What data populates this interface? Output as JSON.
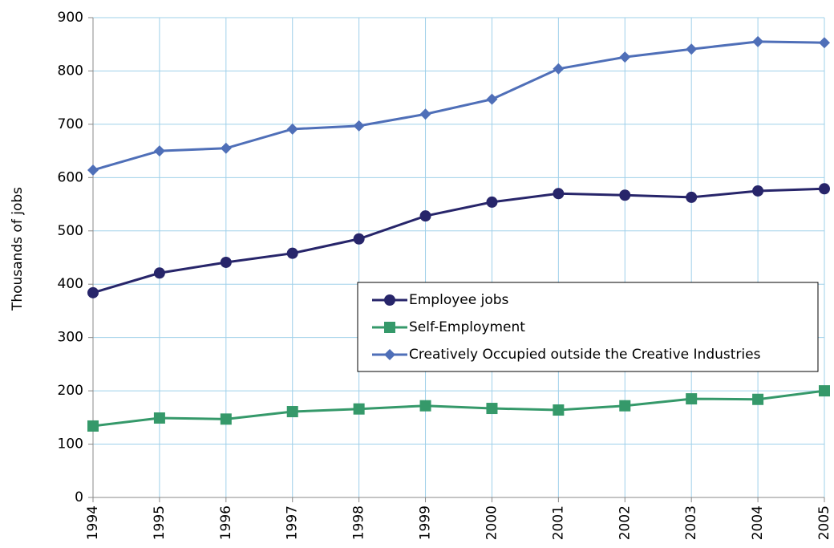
{
  "chart_data": {
    "type": "line",
    "y_label": "Thousands of jobs",
    "x": [
      1994,
      1995,
      1996,
      1997,
      1998,
      1999,
      2000,
      2001,
      2002,
      2003,
      2004,
      2005
    ],
    "xlim": [
      1994,
      2005
    ],
    "xticks": [
      1994,
      1995,
      1996,
      1997,
      1998,
      1999,
      2000,
      2001,
      2002,
      2003,
      2004,
      2005
    ],
    "ylim": [
      0,
      900
    ],
    "yticks": [
      0,
      100,
      200,
      300,
      400,
      500,
      600,
      700,
      800,
      900
    ],
    "grid": true,
    "legend": "right",
    "series": [
      {
        "name": "Employee jobs",
        "color": "#27256a",
        "marker": "circle",
        "values": [
          384,
          421,
          441,
          458,
          485,
          528,
          554,
          570,
          567,
          563,
          575,
          579
        ]
      },
      {
        "name": "Self-Employment",
        "color": "#35996a",
        "marker": "square",
        "values": [
          134,
          149,
          147,
          161,
          166,
          172,
          167,
          164,
          172,
          185,
          184,
          200
        ]
      },
      {
        "name": "Creatively Occupied outside the Creative Industries",
        "color": "#4f6fb8",
        "marker": "diamond",
        "values": [
          614,
          650,
          655,
          691,
          697,
          719,
          747,
          804,
          826,
          841,
          855,
          853
        ]
      }
    ]
  }
}
